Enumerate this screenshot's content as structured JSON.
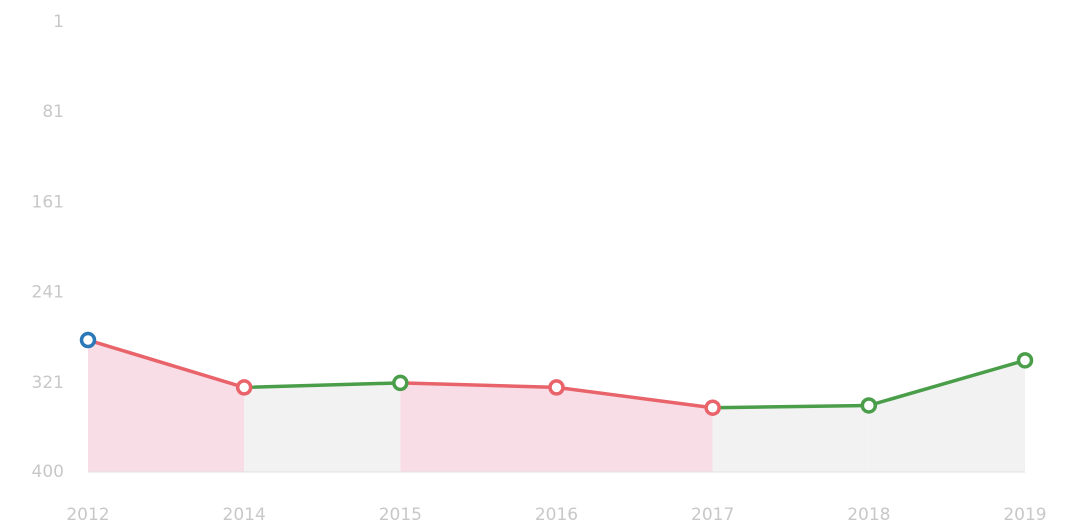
{
  "chart_data": {
    "type": "line",
    "categories": [
      "2012",
      "2014",
      "2015",
      "2016",
      "2017",
      "2018",
      "2019"
    ],
    "values": [
      283,
      325,
      321,
      325,
      343,
      341,
      301
    ],
    "ylim": [
      1,
      400
    ],
    "yticks": [
      1,
      81,
      161,
      241,
      321,
      400
    ],
    "y_inverted": true,
    "rise_color": "#e8646a",
    "fall_color": "#4a9e4a",
    "first_point_color": "#2a78b8",
    "rise_fill": "#f8dde6",
    "fall_fill": "#f2f2f2"
  }
}
